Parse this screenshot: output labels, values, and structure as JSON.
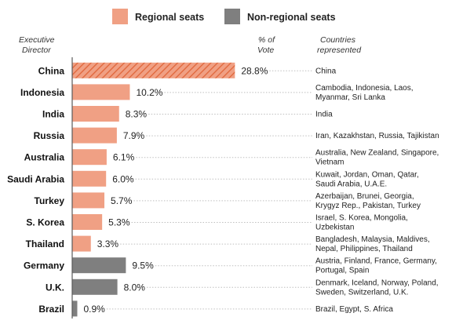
{
  "legend": {
    "regional_label": "Regional seats",
    "nonregional_label": "Non-regional seats"
  },
  "headers": {
    "executive_director": [
      "Executive",
      "Director"
    ],
    "vote": [
      "% of",
      "Vote"
    ],
    "countries": [
      "Countries",
      "represented"
    ]
  },
  "colors": {
    "regional": "#f0a084",
    "nonregional": "#7f7f7f",
    "highlight_stripe": "#e0663a",
    "dotted_leader": "#bfbfbf",
    "axis": "#595959"
  },
  "chart_data": {
    "type": "bar",
    "orientation": "horizontal",
    "xlim": [
      0,
      30
    ],
    "series": [
      {
        "name": "Regional seats",
        "categories": [
          "China",
          "Indonesia",
          "India",
          "Russia",
          "Australia",
          "Saudi Arabia",
          "Turkey",
          "S. Korea",
          "Thailand"
        ],
        "values": [
          28.8,
          10.2,
          8.3,
          7.9,
          6.1,
          6.0,
          5.7,
          5.3,
          3.3
        ],
        "value_labels": [
          "28.8%",
          "10.2%",
          "8.3%",
          "7.9%",
          "6.1%",
          "6.0%",
          "5.7%",
          "5.3%",
          "3.3%"
        ]
      },
      {
        "name": "Non-regional seats",
        "categories": [
          "Germany",
          "U.K.",
          "Brazil"
        ],
        "values": [
          9.5,
          8.0,
          0.9
        ],
        "value_labels": [
          "9.5%",
          "8.0%",
          "0.9%"
        ]
      }
    ],
    "highlighted": "China",
    "countries": [
      [
        "China"
      ],
      [
        "Cambodia, Indonesia, Laos,",
        "Myanmar, Sri Lanka"
      ],
      [
        "India"
      ],
      [
        "Iran, Kazakhstan, Russia, Tajikistan"
      ],
      [
        "Australia, New Zealand, Singapore,",
        "Vietnam"
      ],
      [
        "Kuwait, Jordan, Oman, Qatar,",
        "Saudi Arabia, U.A.E."
      ],
      [
        "Azerbaijan, Brunei, Georgia,",
        "Krygyz Rep., Pakistan, Turkey"
      ],
      [
        "Israel, S. Korea, Mongolia,",
        "Uzbekistan"
      ],
      [
        "Bangladesh, Malaysia, Maldives,",
        "Nepal, Philippines, Thailand"
      ],
      [
        "Austria, Finland, France, Germany,",
        "Portugal, Spain"
      ],
      [
        "Denmark, Iceland, Norway, Poland,",
        "Sweden, Switzerland, U.K."
      ],
      [
        "Brazil, Egypt, S. Africa"
      ]
    ]
  }
}
